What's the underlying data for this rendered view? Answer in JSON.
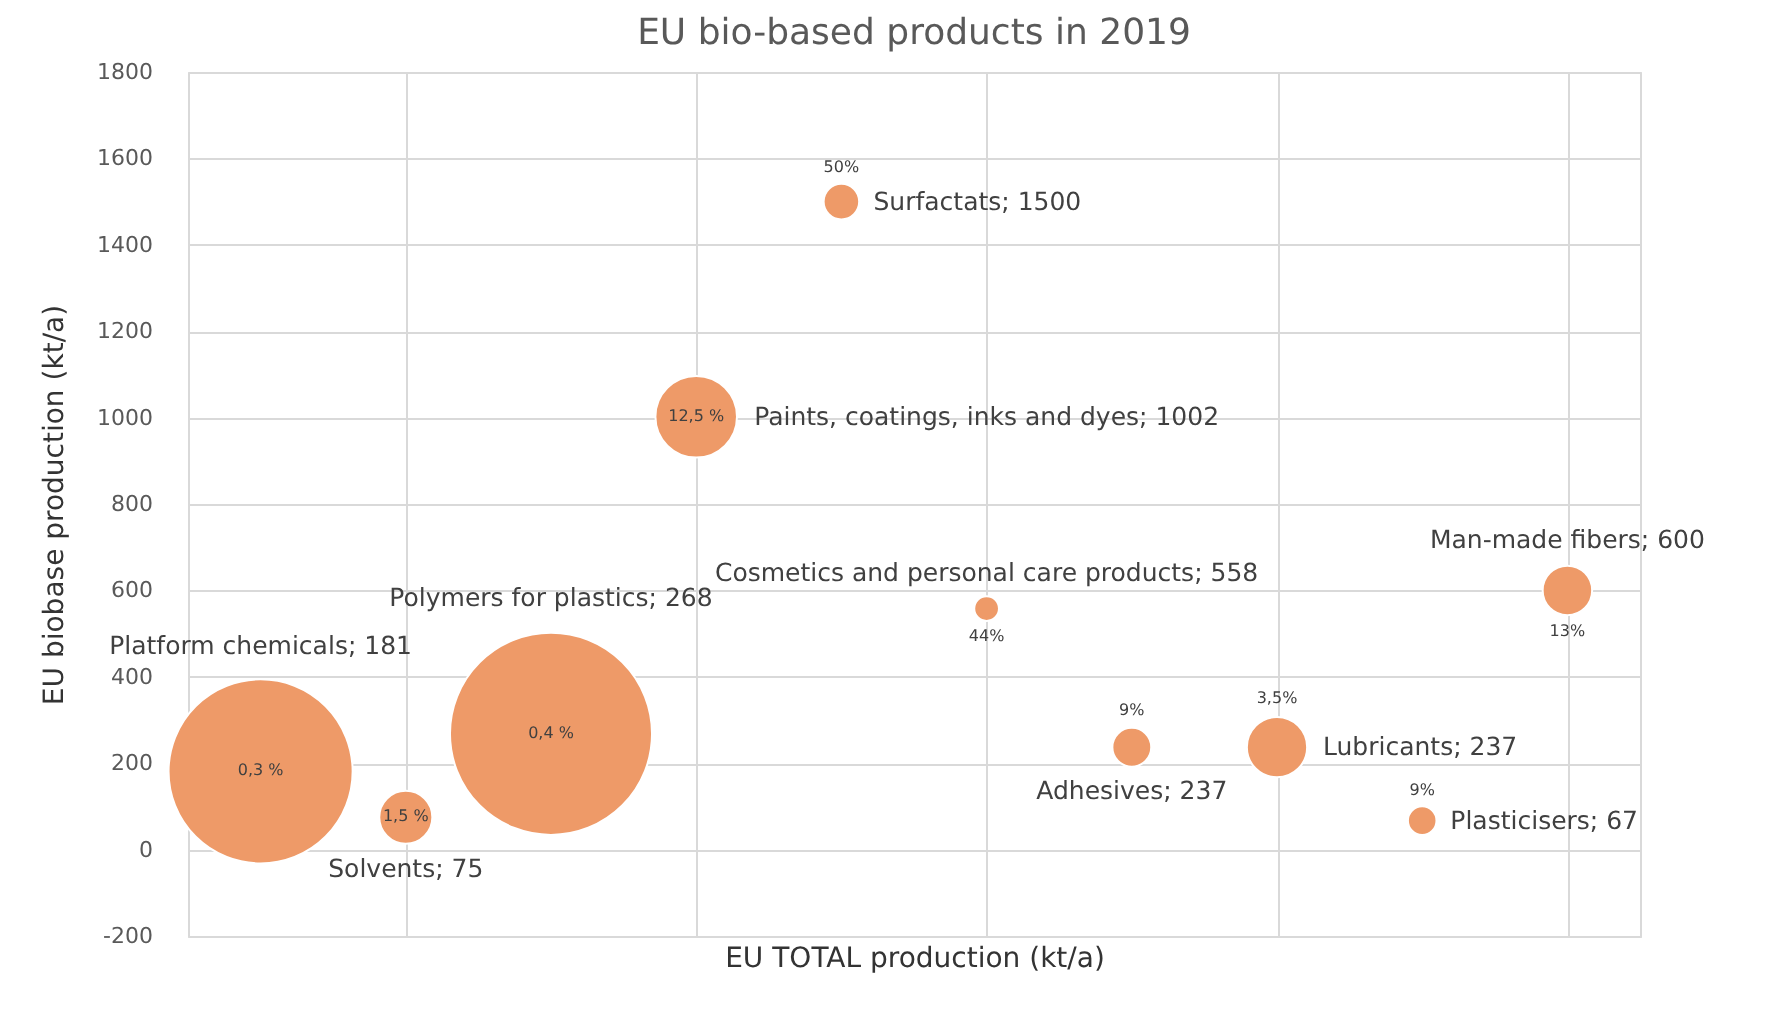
{
  "chart_data": {
    "type": "bubble",
    "title": "EU bio-based products in 2019",
    "xlabel": "EU TOTAL production (kt/a)",
    "ylabel": "EU biobase production (kt/a)",
    "categories": [
      null,
      null,
      null,
      null,
      null,
      null,
      null,
      null,
      null,
      null
    ],
    "series": [
      {
        "color": "#ee9a68",
        "values": [
          181,
          75,
          268,
          1002,
          1500,
          558,
          237,
          237,
          67,
          600
        ],
        "sizes": [
          0.83,
          0.069,
          1,
          0.163,
          0.031,
          0.015,
          0.037,
          0.089,
          0.02,
          0.06
        ],
        "value_labels": [
          "Platform chemicals; 181",
          "Solvents; 75",
          "Polymers for plastics; 268",
          "Paints, coatings, inks and dyes; 1002",
          "Surfactats; 1500",
          "Cosmetics and personal care products; 558",
          "Adhesives; 237",
          "Lubricants; 237",
          "Plasticisers; 67",
          "Man-made fibers; 600"
        ]
      }
    ],
    "annotations": [
      "0,3 %",
      "1,5 %",
      "0,4 %",
      "12,5 %",
      "50%",
      "44%",
      "9%",
      "3,5%",
      "9%",
      "13%"
    ],
    "ylim": [
      -200,
      1800
    ],
    "yticks": [
      -200,
      0,
      200,
      400,
      600,
      800,
      1000,
      1200,
      1400,
      1600,
      1800
    ],
    "grid": true
  }
}
